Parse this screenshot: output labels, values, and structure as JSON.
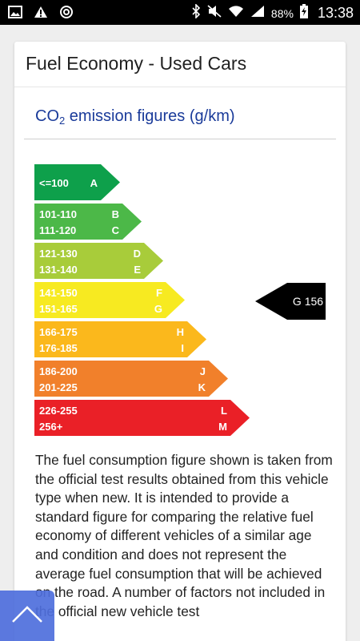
{
  "status_bar": {
    "battery": "88%",
    "time": "13:38"
  },
  "card": {
    "title": "Fuel Economy - Used Cars",
    "subtitle_prefix": "CO",
    "subtitle_sub": "2",
    "subtitle_suffix": " emission figures (g/km)"
  },
  "bands": [
    {
      "range1": "<=100",
      "range2": "",
      "letter1": "A",
      "letter2": "",
      "color": "#0ea04b"
    },
    {
      "range1": "101-110",
      "range2": "111-120",
      "letter1": "B",
      "letter2": "C",
      "color": "#4cb848"
    },
    {
      "range1": "121-130",
      "range2": "131-140",
      "letter1": "D",
      "letter2": "E",
      "color": "#a8cc3a"
    },
    {
      "range1": "141-150",
      "range2": "151-165",
      "letter1": "F",
      "letter2": "G",
      "color": "#f7ea21"
    },
    {
      "range1": "166-175",
      "range2": "176-185",
      "letter1": "H",
      "letter2": "I",
      "color": "#fbb81c"
    },
    {
      "range1": "186-200",
      "range2": "201-225",
      "letter1": "J",
      "letter2": "K",
      "color": "#f1802b"
    },
    {
      "range1": "226-255",
      "range2": "256+",
      "letter1": "L",
      "letter2": "M",
      "color": "#ea2027"
    }
  ],
  "indicator": {
    "label": "G 156",
    "band_index": 3
  },
  "description": "The fuel consumption figure shown is taken from the official test results obtained from this vehicle type when new. It is intended to provide a standard figure for comparing the relative fuel economy of different vehicles of a similar age and condition and does not represent the average fuel consumption that will be achieved on the road. A number of factors not included in the official new vehicle test",
  "icons": {
    "fab": "chevron-up-icon"
  }
}
